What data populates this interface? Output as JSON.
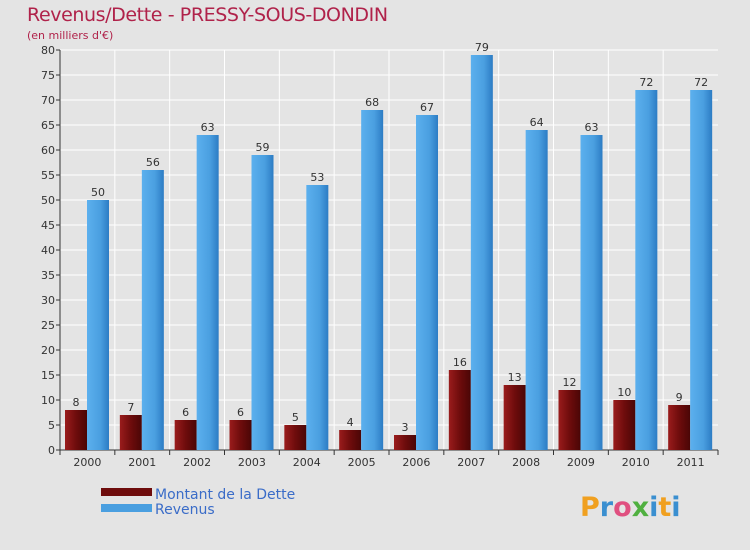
{
  "chart_data": {
    "type": "bar",
    "title": "Revenus/Dette - PRESSY-SOUS-DONDIN",
    "subtitle": "(en milliers d'€)",
    "categories": [
      "2000",
      "2001",
      "2002",
      "2003",
      "2004",
      "2005",
      "2006",
      "2007",
      "2008",
      "2009",
      "2010",
      "2011"
    ],
    "series": [
      {
        "name": "Montant de la Dette",
        "color": "#7a1010",
        "values": [
          8,
          7,
          6,
          6,
          5,
          4,
          3,
          16,
          13,
          12,
          10,
          9
        ]
      },
      {
        "name": "Revenus",
        "color": "#4a9fe0",
        "values": [
          50,
          56,
          63,
          59,
          53,
          68,
          67,
          79,
          64,
          63,
          72,
          72
        ]
      }
    ],
    "ylim": [
      0,
      80
    ],
    "yticks": [
      0,
      5,
      10,
      15,
      20,
      25,
      30,
      35,
      40,
      45,
      50,
      55,
      60,
      65,
      70,
      75,
      80
    ],
    "grid": true,
    "legend_position": "bottom-left"
  },
  "brand": {
    "logo_text": "Proxiti"
  }
}
